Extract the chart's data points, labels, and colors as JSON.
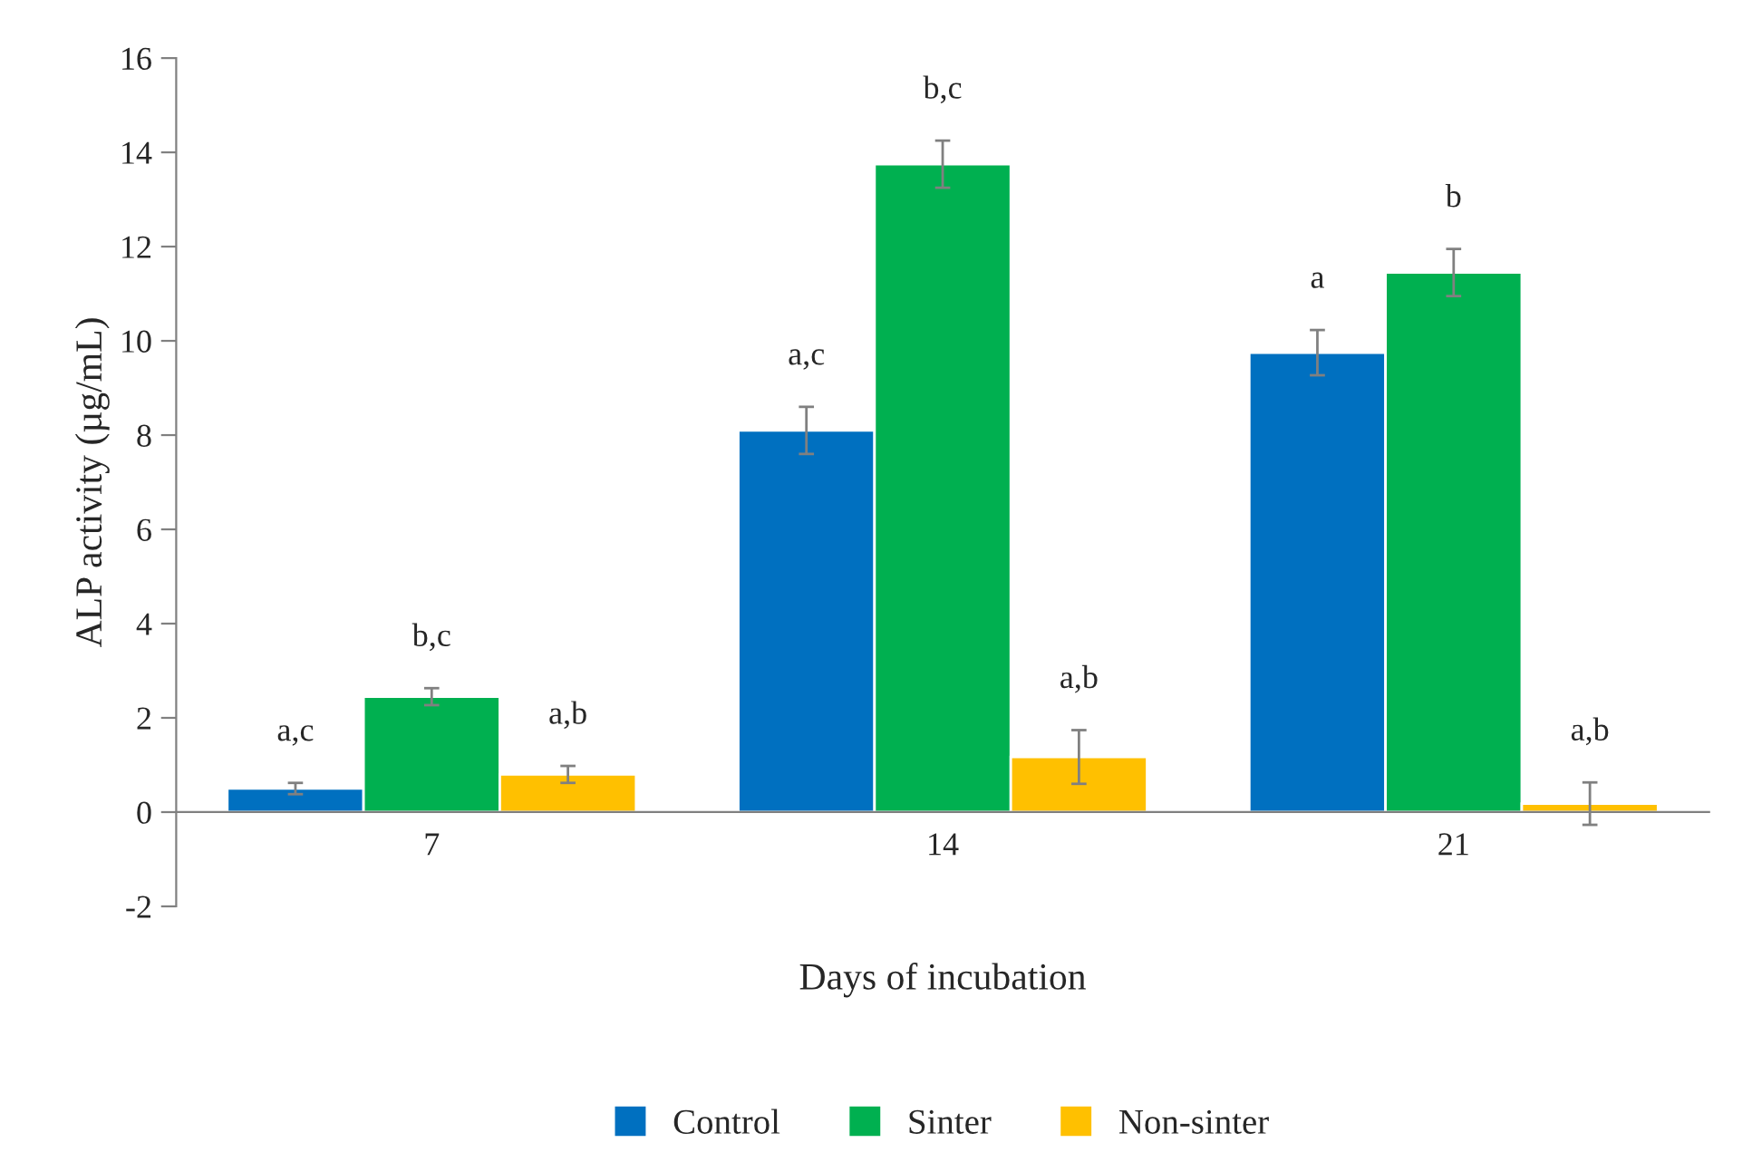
{
  "chart_data": {
    "type": "bar",
    "xlabel": "Days of incubation",
    "ylabel": "ALP activity (µg/mL)",
    "categories": [
      "7",
      "14",
      "21"
    ],
    "series": [
      {
        "name": "Control",
        "color": "#0070c0",
        "values": [
          0.5,
          8.1,
          9.75
        ],
        "errors": [
          0.12,
          0.5,
          0.48
        ],
        "value_labels": [
          "a,c",
          "a,c",
          "a"
        ]
      },
      {
        "name": "Sinter",
        "color": "#00b050",
        "values": [
          2.45,
          13.75,
          11.45
        ],
        "errors": [
          0.18,
          0.5,
          0.5
        ],
        "value_labels": [
          "b,c",
          "b,c",
          "b"
        ]
      },
      {
        "name": "Non-sinter",
        "color": "#ffc000",
        "values": [
          0.8,
          1.17,
          0.18
        ],
        "errors": [
          0.18,
          0.57,
          0.45
        ],
        "value_labels": [
          "a,b",
          "a,b",
          "a,b"
        ]
      }
    ],
    "ylim": [
      -2,
      16
    ],
    "yticks": [
      -2,
      0,
      2,
      4,
      6,
      8,
      10,
      12,
      14,
      16
    ],
    "grid": false,
    "legend": "bottom"
  }
}
